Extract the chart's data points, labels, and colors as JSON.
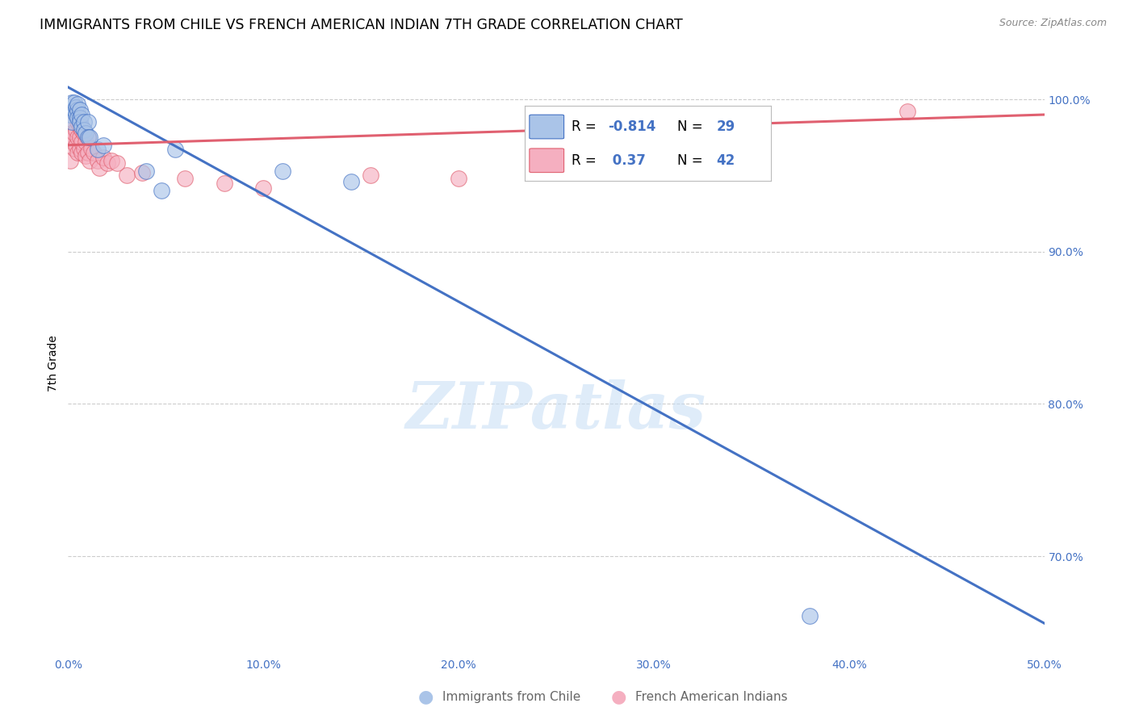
{
  "title": "IMMIGRANTS FROM CHILE VS FRENCH AMERICAN INDIAN 7TH GRADE CORRELATION CHART",
  "source": "Source: ZipAtlas.com",
  "ylabel": "7th Grade",
  "xlim": [
    0.0,
    0.5
  ],
  "ylim": [
    0.635,
    1.018
  ],
  "xticks": [
    0.0,
    0.1,
    0.2,
    0.3,
    0.4,
    0.5
  ],
  "xticklabels": [
    "0.0%",
    "10.0%",
    "20.0%",
    "30.0%",
    "40.0%",
    "50.0%"
  ],
  "yticks": [
    0.7,
    0.8,
    0.9,
    1.0
  ],
  "yticklabels": [
    "70.0%",
    "80.0%",
    "90.0%",
    "100.0%"
  ],
  "blue_R": -0.814,
  "blue_N": 29,
  "pink_R": 0.37,
  "pink_N": 42,
  "blue_color": "#aac4e8",
  "pink_color": "#f5afc0",
  "blue_line_color": "#4472c4",
  "pink_line_color": "#e06070",
  "legend_label_blue": "Immigrants from Chile",
  "legend_label_pink": "French American Indians",
  "watermark": "ZIPatlas",
  "blue_scatter_x": [
    0.001,
    0.002,
    0.002,
    0.003,
    0.003,
    0.004,
    0.004,
    0.005,
    0.005,
    0.005,
    0.006,
    0.006,
    0.006,
    0.007,
    0.007,
    0.008,
    0.008,
    0.009,
    0.01,
    0.01,
    0.011,
    0.015,
    0.018,
    0.04,
    0.055,
    0.11,
    0.145,
    0.38,
    0.048
  ],
  "blue_scatter_y": [
    0.99,
    0.985,
    0.998,
    0.993,
    0.998,
    0.995,
    0.99,
    0.993,
    0.988,
    0.997,
    0.993,
    0.988,
    0.985,
    0.982,
    0.99,
    0.985,
    0.98,
    0.978,
    0.985,
    0.975,
    0.975,
    0.967,
    0.97,
    0.953,
    0.967,
    0.953,
    0.946,
    0.661,
    0.94
  ],
  "pink_scatter_x": [
    0.001,
    0.001,
    0.002,
    0.003,
    0.003,
    0.003,
    0.004,
    0.004,
    0.005,
    0.005,
    0.005,
    0.005,
    0.006,
    0.006,
    0.006,
    0.007,
    0.007,
    0.007,
    0.008,
    0.008,
    0.009,
    0.009,
    0.01,
    0.01,
    0.011,
    0.012,
    0.013,
    0.015,
    0.016,
    0.018,
    0.02,
    0.022,
    0.03,
    0.038,
    0.06,
    0.08,
    0.1,
    0.155,
    0.2,
    0.35,
    0.43,
    0.025
  ],
  "pink_scatter_y": [
    0.973,
    0.96,
    0.975,
    0.968,
    0.978,
    0.985,
    0.97,
    0.98,
    0.965,
    0.975,
    0.985,
    0.99,
    0.968,
    0.975,
    0.982,
    0.965,
    0.972,
    0.98,
    0.968,
    0.978,
    0.963,
    0.972,
    0.965,
    0.975,
    0.96,
    0.968,
    0.965,
    0.96,
    0.955,
    0.962,
    0.958,
    0.96,
    0.95,
    0.952,
    0.948,
    0.945,
    0.942,
    0.95,
    0.948,
    0.968,
    0.992,
    0.958
  ],
  "grid_color": "#cccccc",
  "background_color": "#ffffff",
  "title_fontsize": 12.5,
  "axis_label_fontsize": 10,
  "tick_fontsize": 10,
  "tick_color": "#4472c4",
  "source_fontsize": 9,
  "blue_line_x0": 0.0,
  "blue_line_y0": 1.008,
  "blue_line_x1": 0.5,
  "blue_line_y1": 0.656,
  "pink_line_x0": 0.0,
  "pink_line_y0": 0.97,
  "pink_line_x1": 0.5,
  "pink_line_y1": 0.99
}
